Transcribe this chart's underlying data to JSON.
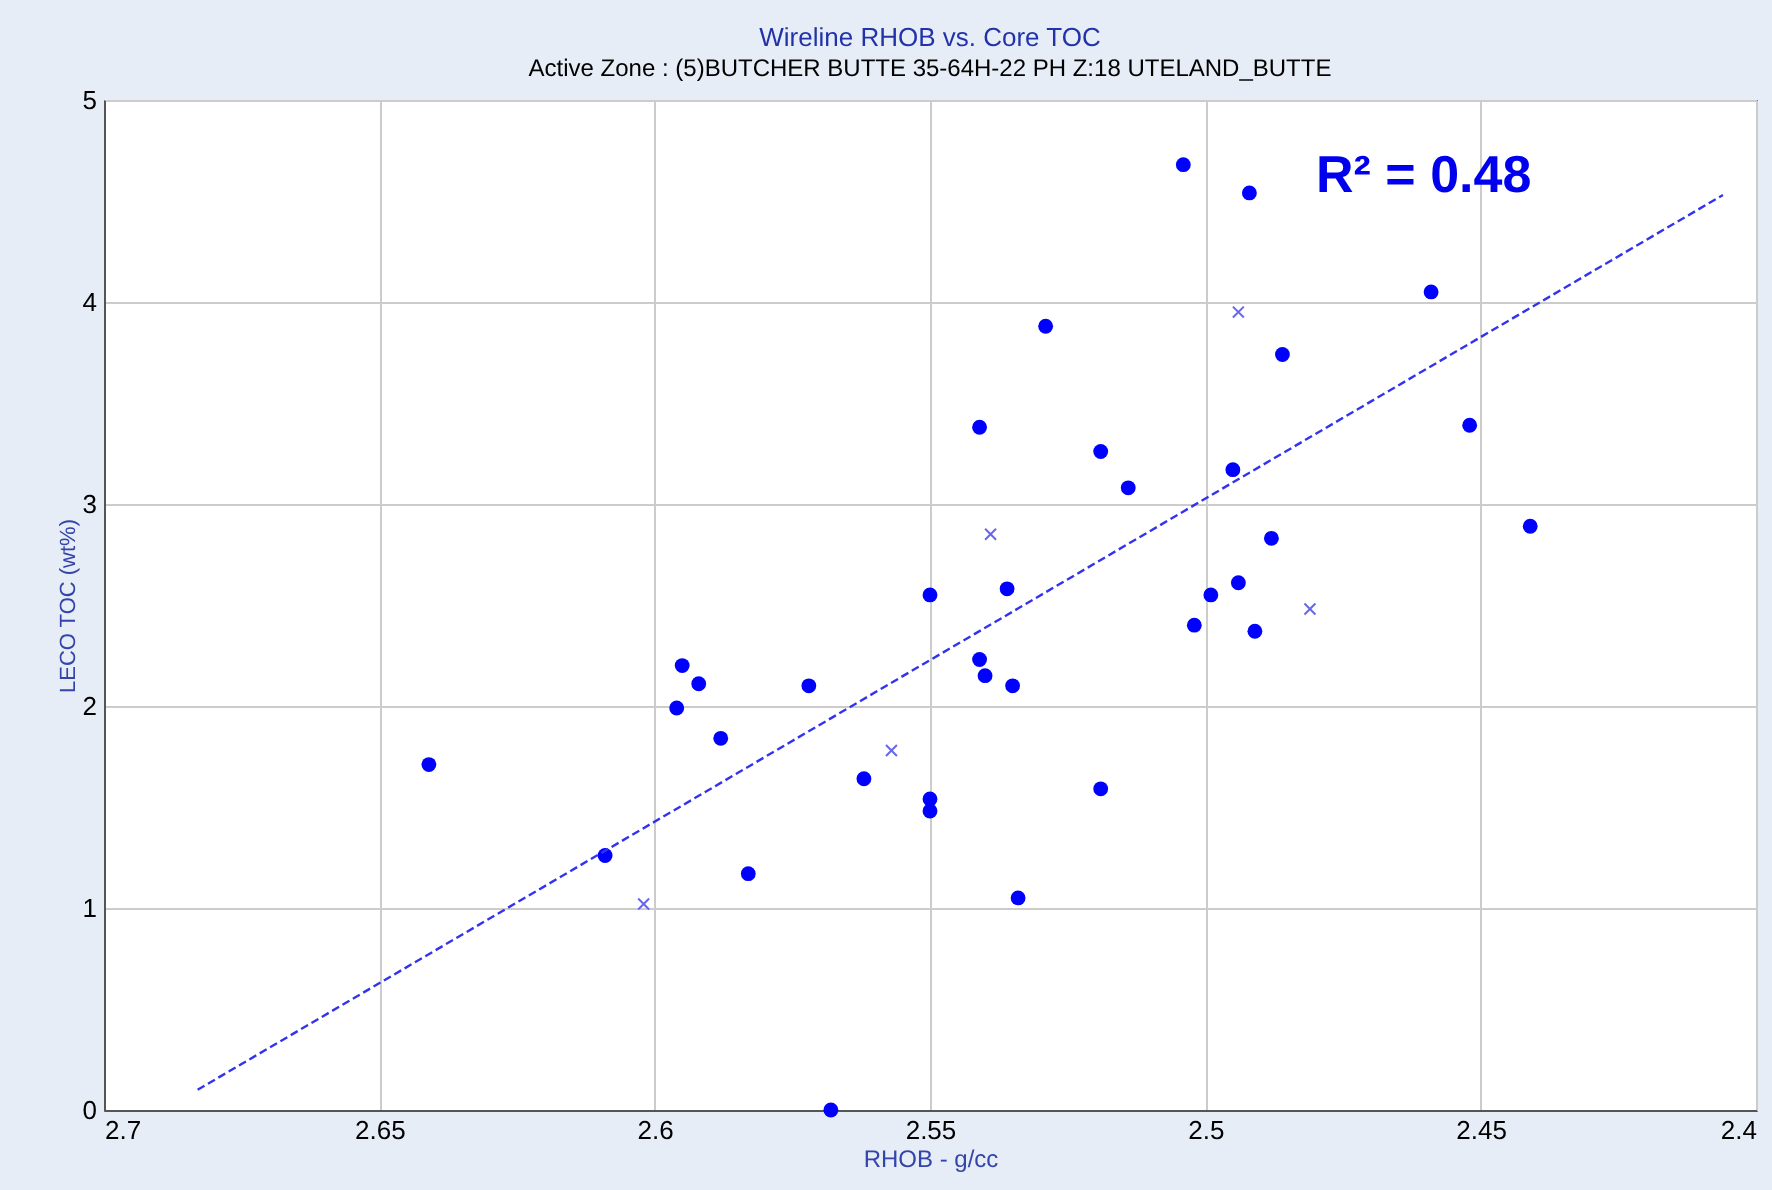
{
  "chart_data": {
    "type": "scatter",
    "title": "Wireline RHOB vs. Core TOC",
    "subtitle": "Active Zone : (5)BUTCHER BUTTE 35-64H-22 PH  Z:18  UTELAND_BUTTE",
    "xlabel": "RHOB - g/cc",
    "ylabel": "LECO TOC (wt%)",
    "xlim": [
      2.7,
      2.4
    ],
    "ylim": [
      0,
      5
    ],
    "xticks": [
      2.7,
      2.65,
      2.6,
      2.55,
      2.5,
      2.45,
      2.4
    ],
    "yticks": [
      0,
      1,
      2,
      3,
      4,
      5
    ],
    "grid": true,
    "annotations": [
      "R² = 0.48"
    ],
    "series": [
      {
        "marker": "circle",
        "color": "#0000ff",
        "x": [
          2.641,
          2.609,
          2.596,
          2.595,
          2.592,
          2.588,
          2.583,
          2.572,
          2.562,
          2.568,
          2.55,
          2.55,
          2.55,
          2.541,
          2.541,
          2.54,
          2.536,
          2.535,
          2.534,
          2.529,
          2.519,
          2.519,
          2.514,
          2.504,
          2.502,
          2.499,
          2.495,
          2.494,
          2.492,
          2.491,
          2.488,
          2.486,
          2.459,
          2.452,
          2.441
        ],
        "values": [
          1.71,
          1.26,
          1.99,
          2.2,
          2.11,
          1.84,
          1.17,
          2.1,
          1.64,
          0.0,
          2.55,
          1.54,
          1.48,
          3.38,
          2.23,
          2.15,
          2.58,
          2.1,
          1.05,
          3.88,
          3.26,
          1.59,
          3.08,
          4.68,
          2.4,
          2.55,
          3.17,
          2.61,
          4.54,
          2.37,
          2.83,
          3.74,
          4.05,
          3.39,
          2.89
        ]
      },
      {
        "marker": "cross",
        "color": "#6666ee",
        "x": [
          2.602,
          2.557,
          2.539,
          2.494,
          2.481
        ],
        "values": [
          1.02,
          1.78,
          2.85,
          3.95,
          2.48
        ]
      },
      {
        "type": "line",
        "line_style": "dashed",
        "marker": "none",
        "color": "#3333ee",
        "x": [
          2.683,
          2.406
        ],
        "values": [
          0.1,
          4.53
        ]
      }
    ]
  }
}
